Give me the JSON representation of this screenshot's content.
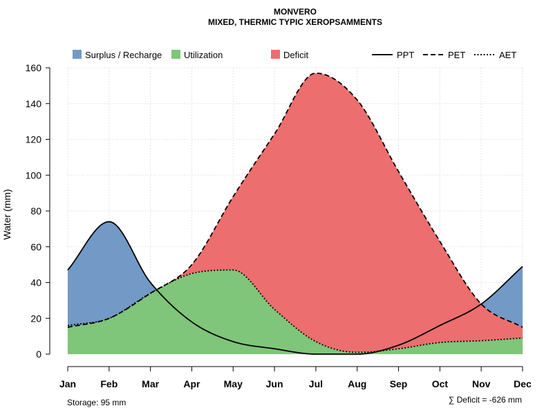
{
  "chart_data": {
    "type": "area",
    "title": "MONVERO",
    "subtitle": "MIXED, THERMIC TYPIC XEROPSAMMENTS",
    "ylabel": "Water (mm)",
    "xlabel": "",
    "ylim": [
      0,
      160
    ],
    "yticks": [
      0,
      20,
      40,
      60,
      80,
      100,
      120,
      140,
      160
    ],
    "grid": true,
    "categories": [
      "Jan",
      "Feb",
      "Mar",
      "Apr",
      "May",
      "Jun",
      "Jul",
      "Aug",
      "Sep",
      "Oct",
      "Nov",
      "Dec"
    ],
    "series": [
      {
        "name": "PPT",
        "style": "solid",
        "values": [
          47,
          74,
          40,
          18,
          7,
          3,
          0,
          0,
          5,
          16,
          28,
          49
        ]
      },
      {
        "name": "PET",
        "style": "dashed",
        "values": [
          15,
          20,
          34,
          50,
          88,
          123,
          157,
          142,
          102,
          63,
          28,
          15
        ]
      },
      {
        "name": "AET",
        "style": "dotted",
        "values": [
          16,
          20,
          34,
          45,
          47,
          25,
          7,
          1,
          3,
          6.5,
          7.5,
          9
        ]
      }
    ],
    "legend": [
      {
        "label": "Surplus / Recharge",
        "kind": "fill",
        "color": "#7399C6"
      },
      {
        "label": "Utilization",
        "kind": "fill",
        "color": "#7FC57A"
      },
      {
        "label": "Deficit",
        "kind": "fill",
        "color": "#EC6E6E"
      },
      {
        "label": "PPT",
        "kind": "line",
        "style": "solid"
      },
      {
        "label": "PET",
        "kind": "line",
        "style": "dashed"
      },
      {
        "label": "AET",
        "kind": "line",
        "style": "dotted"
      }
    ],
    "legend_position": "top",
    "footer_left": "Storage: 95 mm",
    "footer_right": "∑ Deficit = -626 mm"
  }
}
